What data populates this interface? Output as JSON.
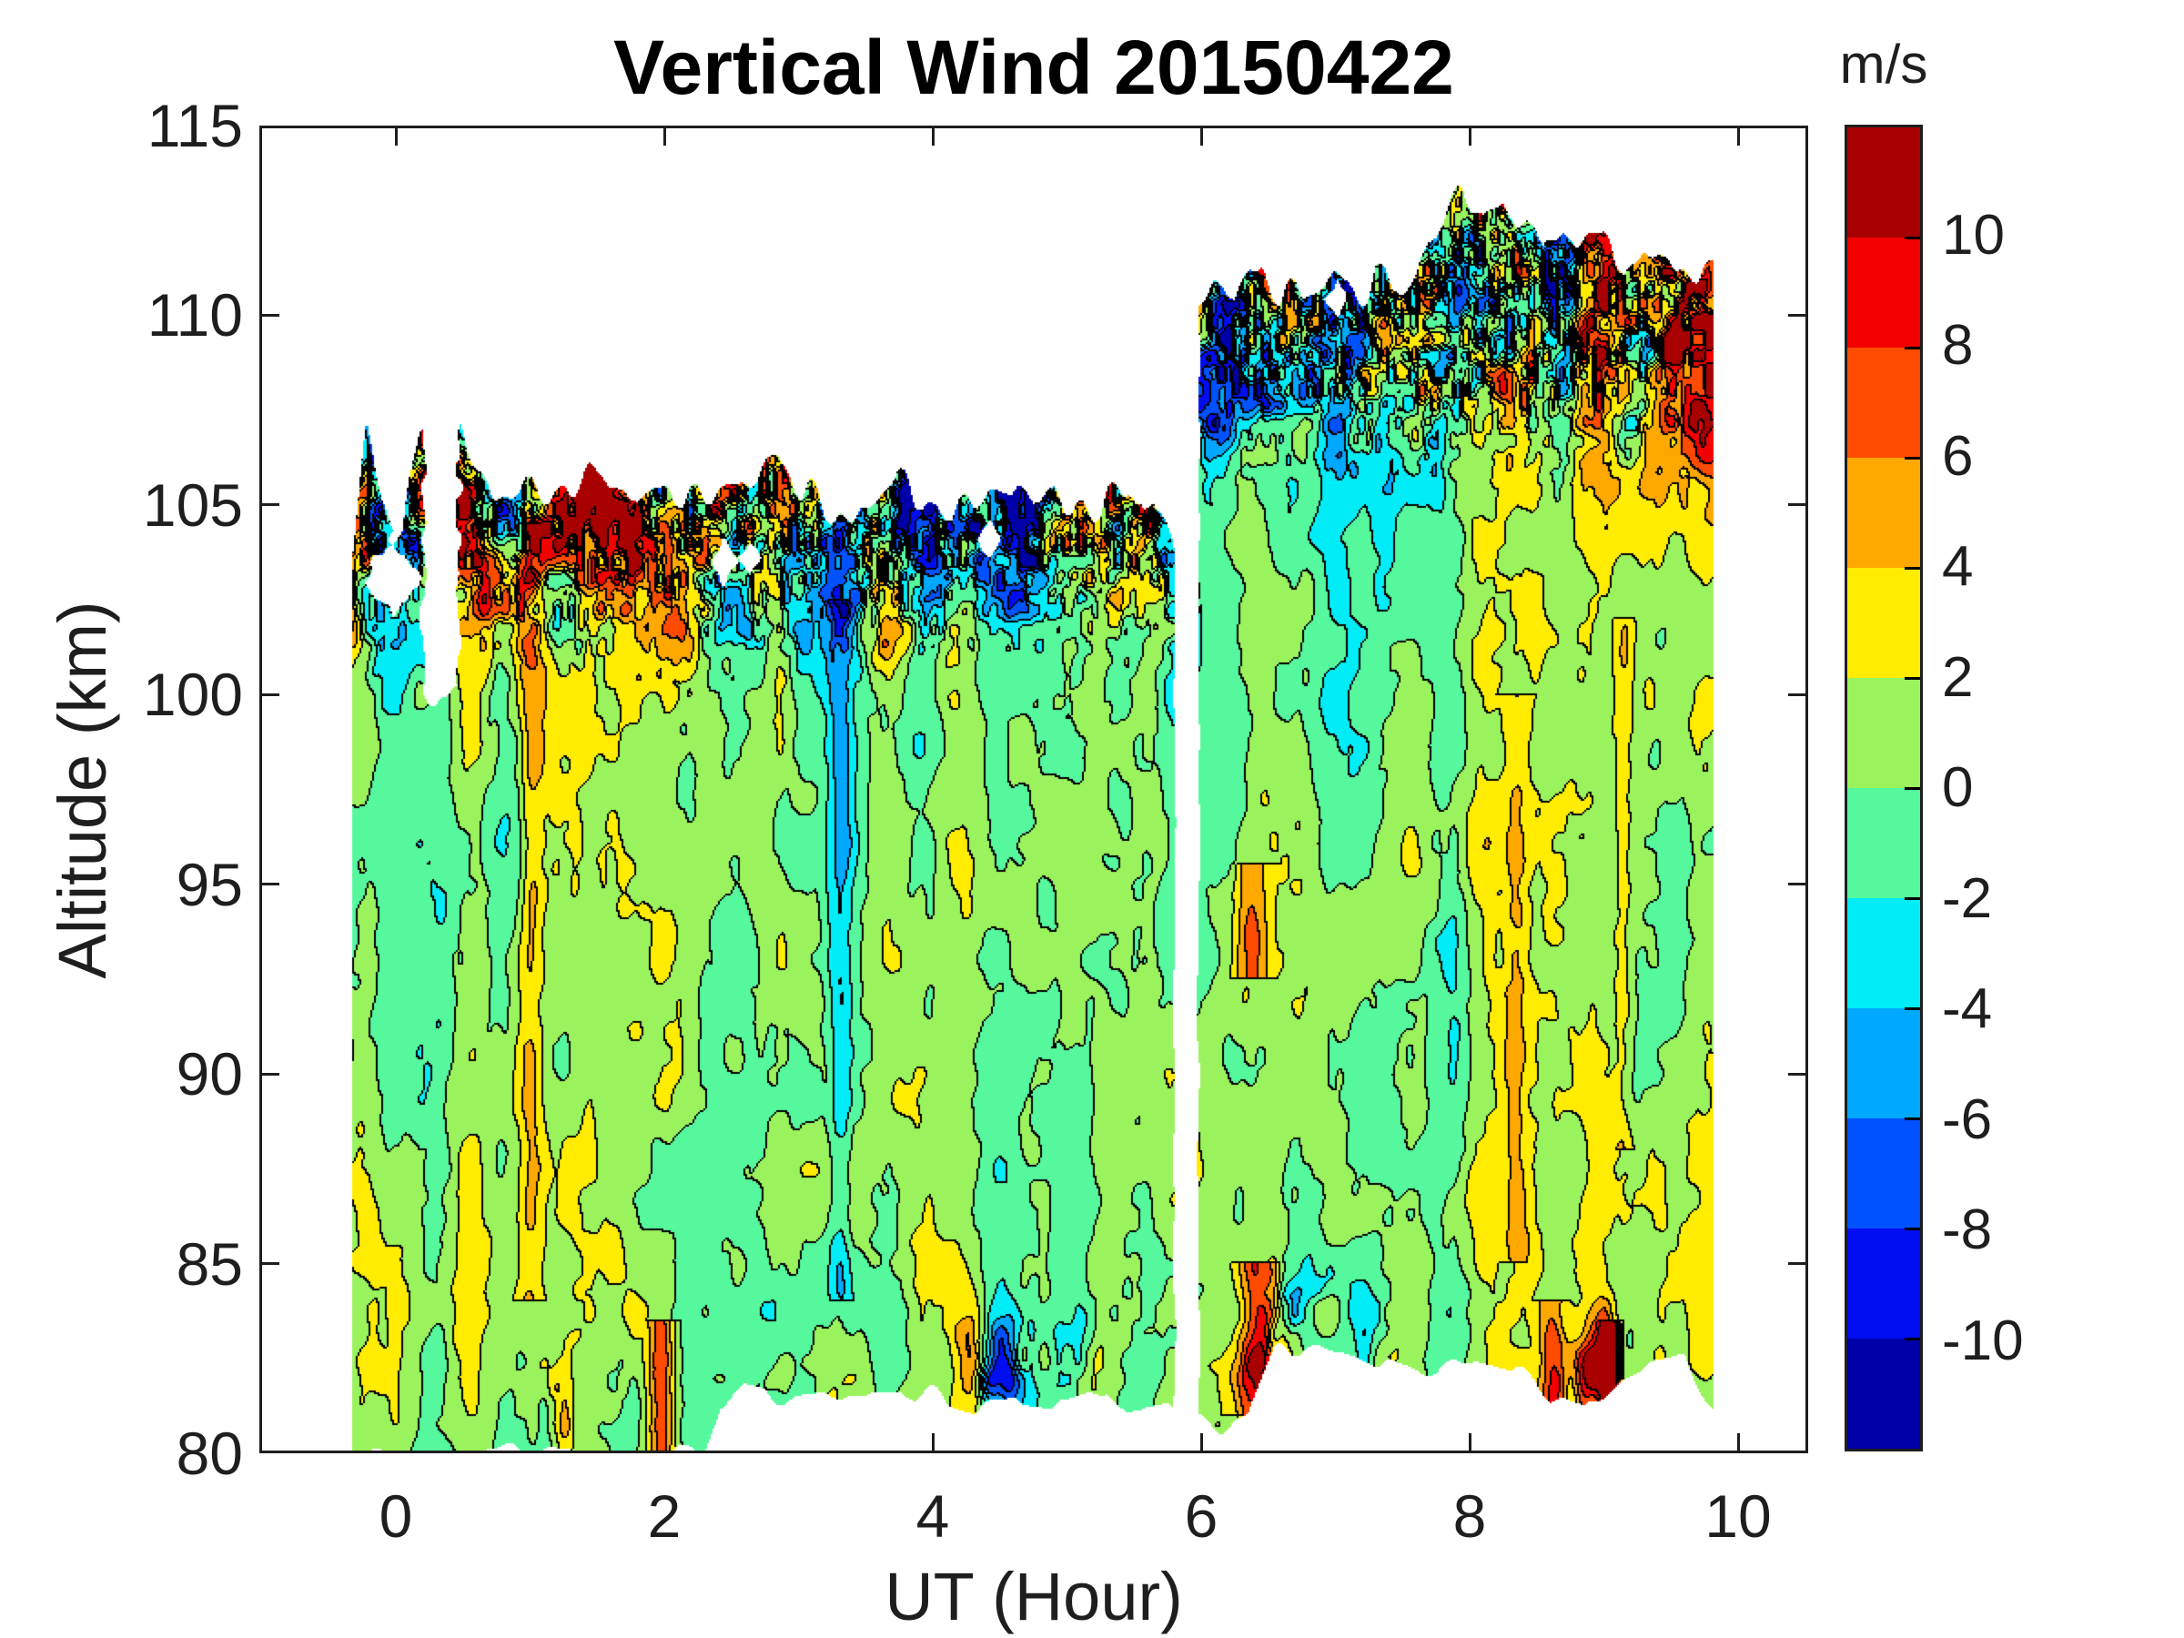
{
  "chart_data": {
    "type": "filled_contour",
    "title": "Vertical Wind 20150422",
    "xlabel": "UT (Hour)",
    "ylabel": "Altitude (km)",
    "colorbar_label": "m/s",
    "x_range": [
      -1.02,
      10.53
    ],
    "y_range": [
      80,
      115
    ],
    "x_ticks": [
      0,
      2,
      4,
      6,
      8,
      10
    ],
    "y_ticks": [
      80,
      85,
      90,
      95,
      100,
      105,
      110,
      115
    ],
    "colorbar_ticks": [
      10,
      8,
      6,
      4,
      2,
      0,
      -2,
      -4,
      -6,
      -8,
      -10
    ],
    "levels": [
      -12,
      -10,
      -8,
      -6,
      -4,
      -2,
      0,
      2,
      4,
      6,
      8,
      10,
      12
    ],
    "contour_interval": 2,
    "contour_line_color": "#000000",
    "palette_low_to_high": [
      "#0000A8",
      "#000DF0",
      "#0052FF",
      "#00A8FF",
      "#00EDF8",
      "#55F89D",
      "#9AF35C",
      "#FFEC00",
      "#FFA800",
      "#FF4B00",
      "#F30000",
      "#A80000"
    ],
    "grid": "off",
    "legend": "colorbar-right",
    "data_coverage": {
      "gap": [
        5.8,
        5.98
      ],
      "notch": {
        "t0": 0.2,
        "t1": 0.47,
        "z_above": 99.8
      },
      "holes": [
        {
          "t_center": -0.02,
          "z_center": 103.1,
          "t_radius": 0.2,
          "z_radius": 1.1
        },
        {
          "t_center": 2.44,
          "z_center": 103.5,
          "t_radius": 0.1,
          "z_radius": 0.6
        },
        {
          "t_center": 2.64,
          "z_center": 103.6,
          "t_radius": 0.08,
          "z_radius": 0.45
        },
        {
          "t_center": 4.42,
          "z_center": 104.1,
          "t_radius": 0.09,
          "z_radius": 0.5
        },
        {
          "t_center": 7.02,
          "z_center": 110.4,
          "t_radius": 0.08,
          "z_radius": 0.5
        }
      ],
      "left_block": {
        "t_start": -0.32,
        "t_end": 5.8,
        "top": [
          [
            -0.32,
            103.6
          ],
          [
            -0.22,
            106.8
          ],
          [
            -0.1,
            105.2
          ],
          [
            0.05,
            104.4
          ],
          [
            0.18,
            106.6
          ],
          [
            0.34,
            107.0
          ],
          [
            0.5,
            107.1
          ],
          [
            0.6,
            106.2
          ],
          [
            0.72,
            105.2
          ],
          [
            0.95,
            105.7
          ],
          [
            1.2,
            105.4
          ],
          [
            1.45,
            106.0
          ],
          [
            1.6,
            105.2
          ],
          [
            1.8,
            105.0
          ],
          [
            2.0,
            105.6
          ],
          [
            2.2,
            105.2
          ],
          [
            2.45,
            105.4
          ],
          [
            2.65,
            105.8
          ],
          [
            2.85,
            106.4
          ],
          [
            3.0,
            105.6
          ],
          [
            3.2,
            104.8
          ],
          [
            3.4,
            104.2
          ],
          [
            3.55,
            105.2
          ],
          [
            3.75,
            105.6
          ],
          [
            3.95,
            105.3
          ],
          [
            4.15,
            104.9
          ],
          [
            4.35,
            105.4
          ],
          [
            4.55,
            105.6
          ],
          [
            4.75,
            105.0
          ],
          [
            4.95,
            105.3
          ],
          [
            5.15,
            104.8
          ],
          [
            5.35,
            105.1
          ],
          [
            5.55,
            105.4
          ],
          [
            5.7,
            104.6
          ],
          [
            5.8,
            103.4
          ]
        ],
        "bottom": [
          [
            -0.32,
            80.0
          ],
          [
            2.3,
            80.0
          ],
          [
            2.42,
            81.2
          ],
          [
            2.6,
            81.7
          ],
          [
            2.9,
            81.5
          ],
          [
            3.2,
            81.7
          ],
          [
            3.5,
            81.4
          ],
          [
            3.8,
            81.6
          ],
          [
            4.1,
            81.5
          ],
          [
            4.4,
            81.1
          ],
          [
            4.7,
            81.4
          ],
          [
            5.0,
            81.2
          ],
          [
            5.3,
            81.5
          ],
          [
            5.55,
            80.9
          ],
          [
            5.8,
            81.3
          ]
        ]
      },
      "right_block": {
        "t_start": 5.98,
        "t_end": 9.82,
        "top": [
          [
            5.98,
            110.2
          ],
          [
            6.1,
            110.6
          ],
          [
            6.25,
            110.3
          ],
          [
            6.45,
            111.2
          ],
          [
            6.6,
            110.6
          ],
          [
            6.8,
            110.9
          ],
          [
            7.0,
            111.3
          ],
          [
            7.15,
            110.6
          ],
          [
            7.3,
            111.0
          ],
          [
            7.5,
            110.7
          ],
          [
            7.65,
            111.5
          ],
          [
            7.8,
            112.3
          ],
          [
            7.95,
            113.2
          ],
          [
            8.1,
            112.6
          ],
          [
            8.25,
            113.0
          ],
          [
            8.4,
            112.2
          ],
          [
            8.55,
            111.8
          ],
          [
            8.7,
            112.4
          ],
          [
            8.85,
            111.7
          ],
          [
            9.0,
            111.9
          ],
          [
            9.15,
            111.4
          ],
          [
            9.3,
            111.7
          ],
          [
            9.45,
            111.2
          ],
          [
            9.6,
            111.5
          ],
          [
            9.72,
            111.1
          ],
          [
            9.82,
            111.4
          ]
        ],
        "bottom": [
          [
            5.98,
            81.0
          ],
          [
            6.15,
            80.6
          ],
          [
            6.35,
            80.9
          ],
          [
            6.55,
            82.6
          ],
          [
            6.8,
            82.9
          ],
          [
            7.1,
            82.8
          ],
          [
            7.4,
            82.4
          ],
          [
            7.6,
            82.0
          ],
          [
            7.85,
            82.3
          ],
          [
            8.1,
            82.6
          ],
          [
            8.35,
            82.4
          ],
          [
            8.6,
            81.4
          ],
          [
            8.85,
            81.0
          ],
          [
            9.1,
            81.6
          ],
          [
            9.35,
            82.3
          ],
          [
            9.6,
            82.4
          ],
          [
            9.82,
            81.0
          ]
        ]
      }
    },
    "approx_grid": {
      "note": "values estimated visually from contour colors, m/s",
      "ut_hours": [
        -0.2,
        0.5,
        1.0,
        1.5,
        2.0,
        2.5,
        3.0,
        3.5,
        4.0,
        4.5,
        5.0,
        5.5,
        6.2,
        6.8,
        7.4,
        8.0,
        8.6,
        9.2,
        9.8
      ],
      "altitude_km": [
        81,
        84,
        87,
        90,
        93,
        96,
        99,
        102,
        104,
        106,
        108,
        110,
        112
      ],
      "values_ms": [
        [
          0,
          1,
          2,
          1,
          5,
          null,
          null,
          null,
          null,
          null,
          null,
          null,
          4,
          null,
          null,
          null,
          5,
          -5,
          null
        ],
        [
          -1,
          2,
          1,
          -2,
          3,
          2,
          -3,
          1,
          2,
          1,
          -4,
          2,
          7,
          -1,
          1,
          0,
          2,
          -2,
          1
        ],
        [
          1,
          -2,
          3,
          1,
          0,
          2,
          -1,
          -3,
          1,
          2,
          0,
          -5,
          -2,
          1,
          3,
          -1,
          1,
          2,
          -1
        ],
        [
          0,
          1,
          4,
          -1,
          1,
          3,
          1,
          0,
          -2,
          1,
          3,
          -1,
          1,
          4,
          -1,
          2,
          5,
          1,
          -3
        ],
        [
          2,
          0,
          3,
          1,
          -1,
          1,
          0,
          2,
          1,
          -1,
          1,
          2,
          5,
          1,
          6,
          -2,
          1,
          6,
          1
        ],
        [
          -1,
          3,
          1,
          0,
          1,
          -2,
          1,
          1,
          3,
          1,
          0,
          -3,
          1,
          -4,
          2,
          1,
          0,
          2,
          -2
        ],
        [
          1,
          0,
          -3,
          2,
          1,
          0,
          -4,
          1,
          0,
          2,
          1,
          0,
          -2,
          3,
          1,
          -1,
          3,
          0,
          1
        ],
        [
          -4,
          3,
          -6,
          4,
          -2,
          1,
          -7,
          -3,
          2,
          -5,
          3,
          -8,
          2,
          1,
          -3,
          2,
          1,
          4,
          -1
        ],
        [
          8,
          -7,
          10,
          -9,
          3,
          -6,
          -10,
          4,
          -8,
          6,
          -4,
          9,
          3,
          -2,
          1,
          3,
          -5,
          2,
          1
        ],
        [
          null,
          null,
          null,
          null,
          null,
          null,
          null,
          null,
          null,
          null,
          null,
          null,
          5,
          2,
          -3,
          1,
          6,
          -2,
          3
        ],
        [
          null,
          null,
          null,
          null,
          null,
          null,
          null,
          null,
          null,
          null,
          null,
          null,
          7,
          -6,
          4,
          8,
          2,
          5,
          -3
        ],
        [
          null,
          null,
          null,
          null,
          null,
          null,
          null,
          null,
          null,
          null,
          null,
          null,
          -9,
          8,
          -7,
          10,
          6,
          -8,
          9
        ],
        [
          null,
          null,
          null,
          null,
          null,
          null,
          null,
          null,
          null,
          null,
          null,
          null,
          null,
          null,
          null,
          11,
          -9,
          7,
          null
        ]
      ]
    },
    "render_params": {
      "transition_altitude_left_km": 101.9,
      "transition_altitude_right_km": 106.9,
      "base_amplitude_ms": 3.0,
      "top_amplitude_ms": 14.2,
      "bias_ms": 0.35,
      "seed": 7,
      "streaks": [
        {
          "t": 1.0,
          "w": 0.1,
          "z0": 84.0,
          "z1": 104.5,
          "dv": 3.2
        },
        {
          "t": 3.32,
          "w": 0.09,
          "z0": 84.0,
          "z1": 102.5,
          "dv": -3.5
        },
        {
          "t": 1.98,
          "w": 0.1,
          "z0": 80.0,
          "z1": 83.5,
          "dv": 6.0
        },
        {
          "t": 6.42,
          "w": 0.13,
          "z0": 81.0,
          "z1": 85.0,
          "dv": 6.5
        },
        {
          "t": 6.38,
          "w": 0.12,
          "z0": 92.5,
          "z1": 95.5,
          "dv": 4.5
        },
        {
          "t": 8.35,
          "w": 0.09,
          "z0": 85.0,
          "z1": 100.0,
          "dv": 2.8
        },
        {
          "t": 8.62,
          "w": 0.1,
          "z0": 80.5,
          "z1": 84.0,
          "dv": 5.5
        },
        {
          "t": 9.05,
          "w": 0.07,
          "z0": 81.0,
          "z1": 83.5,
          "dv": 9.0
        },
        {
          "t": 9.15,
          "w": 0.08,
          "z0": 88.0,
          "z1": 102.0,
          "dv": 2.6
        }
      ]
    }
  }
}
